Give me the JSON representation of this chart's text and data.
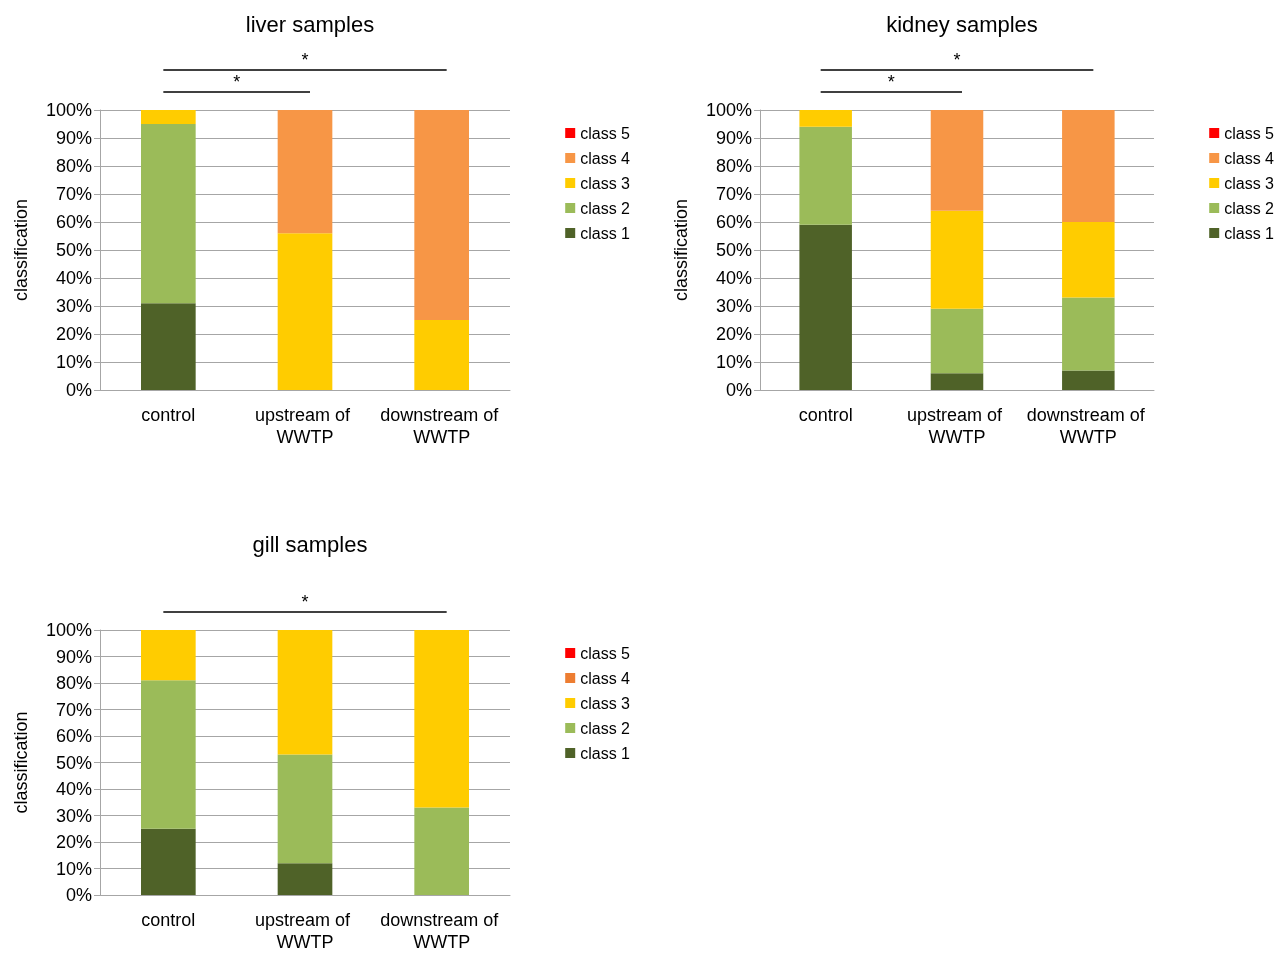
{
  "chart_data": [
    {
      "type": "bar",
      "title": "liver samples",
      "ylabel": "classification",
      "stacked": true,
      "grid": "y",
      "legend": "right",
      "categories": [
        "control",
        "upstream of WWTP",
        "downstream of WWTP"
      ],
      "series": [
        {
          "name": "class 1",
          "color": "#4f6228",
          "values": [
            31,
            0,
            0
          ]
        },
        {
          "name": "class 2",
          "color": "#9bbb59",
          "values": [
            64,
            0,
            0
          ]
        },
        {
          "name": "class 3",
          "color": "#ffcc00",
          "values": [
            5,
            56,
            25
          ]
        },
        {
          "name": "class 4",
          "color": "#f79646",
          "values": [
            0,
            44,
            75
          ]
        },
        {
          "name": "class 5",
          "color": "#ff0000",
          "values": [
            0,
            0,
            0
          ]
        }
      ],
      "ylim": [
        0,
        100
      ],
      "yticks": [
        {
          "value": 0,
          "label": "0%"
        },
        {
          "value": 10,
          "label": "10%"
        },
        {
          "value": 20,
          "label": "20%"
        },
        {
          "value": 30,
          "label": "30%"
        },
        {
          "value": 40,
          "label": "40%"
        },
        {
          "value": 50,
          "label": "50%"
        },
        {
          "value": 60,
          "label": "60%"
        },
        {
          "value": 70,
          "label": "70%"
        },
        {
          "value": 80,
          "label": "80%"
        },
        {
          "value": 90,
          "label": "90%"
        },
        {
          "value": 100,
          "label": "100%"
        }
      ],
      "annotations": [
        "*",
        "*"
      ]
    },
    {
      "type": "bar",
      "title": "kidney samples",
      "ylabel": "classification",
      "stacked": true,
      "grid": "y",
      "legend": "right",
      "categories": [
        "control",
        "upstream of WWTP",
        "downstream of WWTP"
      ],
      "series": [
        {
          "name": "class 1",
          "color": "#4f6228",
          "values": [
            59,
            6,
            7
          ]
        },
        {
          "name": "class 2",
          "color": "#9bbb59",
          "values": [
            35,
            23,
            26
          ]
        },
        {
          "name": "class 3",
          "color": "#ffcc00",
          "values": [
            6,
            35,
            27
          ]
        },
        {
          "name": "class 4",
          "color": "#f79646",
          "values": [
            0,
            36,
            40
          ]
        },
        {
          "name": "class 5",
          "color": "#ff0000",
          "values": [
            0,
            0,
            0
          ]
        }
      ],
      "ylim": [
        0,
        100
      ],
      "yticks": [
        {
          "value": 0,
          "label": "0%"
        },
        {
          "value": 10,
          "label": "10%"
        },
        {
          "value": 20,
          "label": "20%"
        },
        {
          "value": 30,
          "label": "30%"
        },
        {
          "value": 40,
          "label": "40%"
        },
        {
          "value": 50,
          "label": "50%"
        },
        {
          "value": 60,
          "label": "60%"
        },
        {
          "value": 70,
          "label": "70%"
        },
        {
          "value": 80,
          "label": "80%"
        },
        {
          "value": 90,
          "label": "90%"
        },
        {
          "value": 100,
          "label": "100%"
        }
      ],
      "annotations": [
        "*",
        "*"
      ]
    },
    {
      "type": "bar",
      "title": "gill samples",
      "ylabel": "classification",
      "stacked": true,
      "grid": "y",
      "legend": "right",
      "categories": [
        "control",
        "upstream of WWTP",
        "downstream of WWTP"
      ],
      "series": [
        {
          "name": "class 1",
          "color": "#4f6228",
          "values": [
            25,
            12,
            0
          ]
        },
        {
          "name": "class 2",
          "color": "#9bbb59",
          "values": [
            56,
            41,
            33
          ]
        },
        {
          "name": "class 3",
          "color": "#ffcc00",
          "values": [
            19,
            47,
            67
          ]
        },
        {
          "name": "class 4",
          "color": "#ed7d31",
          "values": [
            0,
            0,
            0
          ]
        },
        {
          "name": "class 5",
          "color": "#ff0000",
          "values": [
            0,
            0,
            0
          ]
        }
      ],
      "ylim": [
        0,
        100
      ],
      "yticks": [
        {
          "value": 0,
          "label": "0%"
        },
        {
          "value": 10,
          "label": "10%"
        },
        {
          "value": 20,
          "label": "20%"
        },
        {
          "value": 30,
          "label": "30%"
        },
        {
          "value": 40,
          "label": "40%"
        },
        {
          "value": 50,
          "label": "50%"
        },
        {
          "value": 60,
          "label": "60%"
        },
        {
          "value": 70,
          "label": "70%"
        },
        {
          "value": 80,
          "label": "80%"
        },
        {
          "value": 90,
          "label": "90%"
        },
        {
          "value": 100,
          "label": "100%"
        }
      ],
      "annotations": [
        "*"
      ]
    }
  ]
}
